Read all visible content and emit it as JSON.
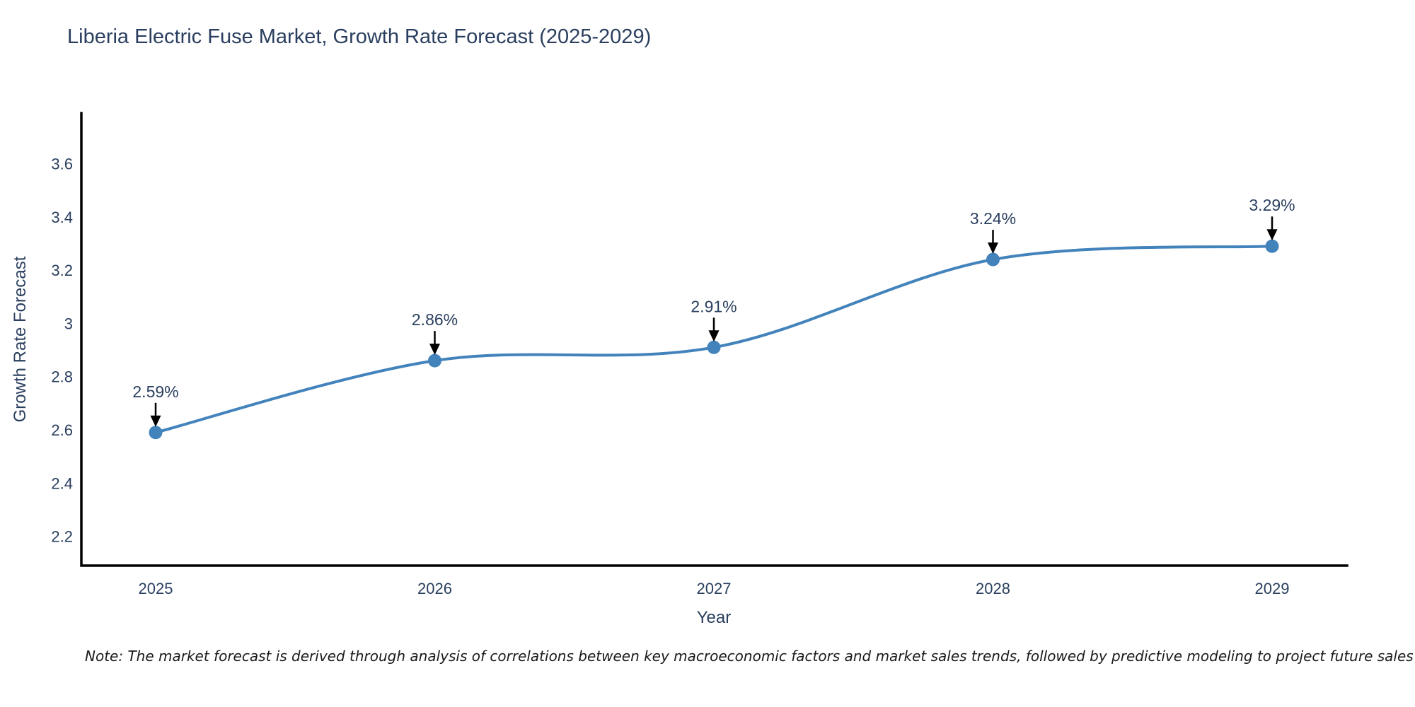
{
  "chart": {
    "title": "Liberia Electric Fuse Market, Growth Rate Forecast (2025-2029)",
    "xlabel": "Year",
    "ylabel": "Growth Rate Forecast",
    "note": "Note: The market forecast is derived through analysis of correlations between key macroeconomic factors and market sales trends, followed by predictive modeling to project future sales"
  },
  "chart_data": {
    "type": "line",
    "title": "Liberia Electric Fuse Market, Growth Rate Forecast (2025-2029)",
    "xlabel": "Year",
    "ylabel": "Growth Rate Forecast",
    "categories": [
      "2025",
      "2026",
      "2027",
      "2028",
      "2029"
    ],
    "series": [
      {
        "name": "Growth Rate Forecast",
        "values": [
          2.59,
          2.86,
          2.91,
          3.24,
          3.29
        ]
      }
    ],
    "point_labels": [
      "2.59%",
      "2.86%",
      "2.91%",
      "3.24%",
      "3.29%"
    ],
    "yticks": [
      2.2,
      2.4,
      2.6,
      2.8,
      3,
      3.2,
      3.4,
      3.6
    ],
    "ylim": [
      2.09,
      3.79
    ],
    "line_shape": "spline",
    "grid": false,
    "legend": false,
    "annotations_arrow": "down",
    "colors": {
      "line": "#4383bc",
      "marker": "#4383bc",
      "axis": "#000000",
      "arrow": "#000000",
      "text": "#2a3f5f",
      "note": "#1a1a1a",
      "background": "#ffffff"
    }
  }
}
